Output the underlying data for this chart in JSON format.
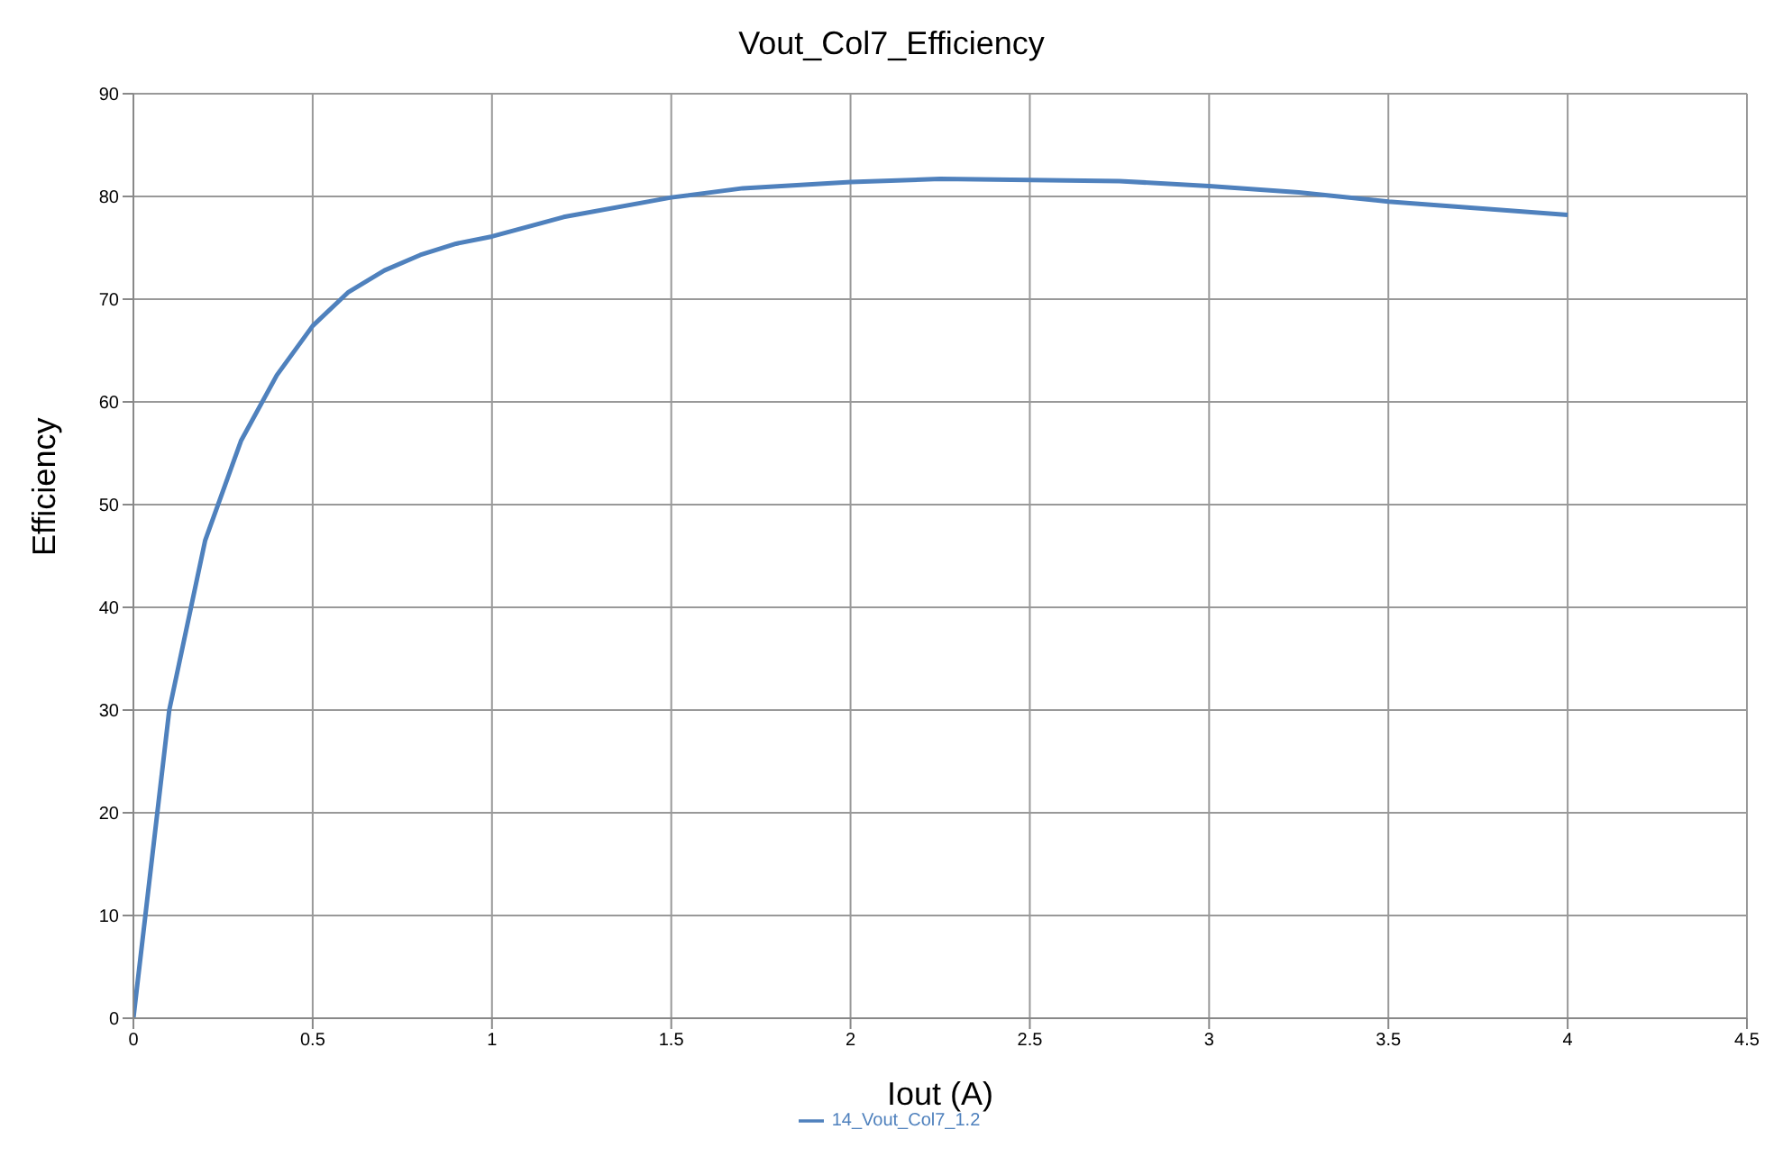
{
  "chart_data": {
    "type": "line",
    "title": "Vout_Col7_Efficiency",
    "xlabel": "Iout (A)",
    "ylabel": "Efficiency",
    "x": [
      0,
      0.1,
      0.2,
      0.3,
      0.4,
      0.5,
      0.6,
      0.7,
      0.8,
      0.9,
      1.0,
      1.2,
      1.5,
      1.7,
      2.0,
      2.25,
      2.75,
      3.0,
      3.25,
      3.5,
      4.0
    ],
    "series": [
      {
        "name": "14_Vout_Col7_1.2",
        "color": "#4f81bd",
        "values": [
          0,
          30,
          46.5,
          56.2,
          62.6,
          67.4,
          70.7,
          72.8,
          74.3,
          75.4,
          76.1,
          78.0,
          79.9,
          80.8,
          81.4,
          81.7,
          81.5,
          81.0,
          80.4,
          79.5,
          78.2
        ]
      }
    ],
    "xlim": [
      0,
      4.5
    ],
    "xticks": [
      0,
      0.5,
      1,
      1.5,
      2,
      2.5,
      3,
      3.5,
      4,
      4.5
    ],
    "ylim": [
      0,
      90
    ],
    "yticks": [
      0,
      10,
      20,
      30,
      40,
      50,
      60,
      70,
      80,
      90
    ],
    "grid": true,
    "legend": "bottom",
    "marker": "none",
    "line_style": "solid"
  }
}
